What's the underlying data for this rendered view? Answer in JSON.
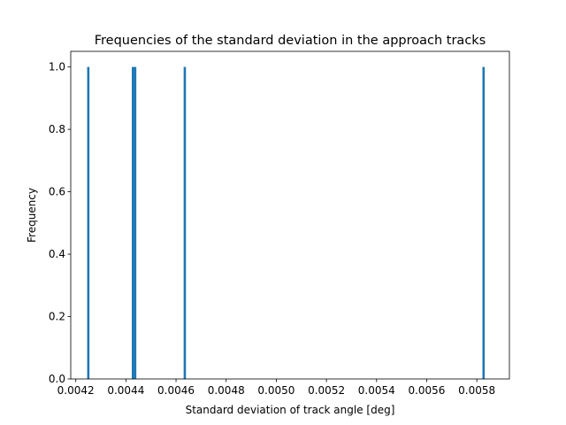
{
  "chart_data": {
    "type": "bar",
    "title": "Frequencies of the standard deviation in the approach tracks",
    "xlabel": "Standard deviation of track angle [deg]",
    "ylabel": "Frequency",
    "xlim": [
      0.00418,
      0.00593
    ],
    "ylim": [
      0,
      1.05
    ],
    "bar_color": "#1f77b4",
    "bin_width": 9.2e-06,
    "bars": [
      {
        "x": 0.00425,
        "count": 1
      },
      {
        "x": 0.004428,
        "count": 1
      },
      {
        "x": 0.004437,
        "count": 1
      },
      {
        "x": 0.004635,
        "count": 1
      },
      {
        "x": 0.005827,
        "count": 1
      }
    ],
    "xticks": [
      {
        "value": 0.0042,
        "label": "0.0042"
      },
      {
        "value": 0.0044,
        "label": "0.0044"
      },
      {
        "value": 0.0046,
        "label": "0.0046"
      },
      {
        "value": 0.0048,
        "label": "0.0048"
      },
      {
        "value": 0.005,
        "label": "0.0050"
      },
      {
        "value": 0.0052,
        "label": "0.0052"
      },
      {
        "value": 0.0054,
        "label": "0.0054"
      },
      {
        "value": 0.0056,
        "label": "0.0056"
      },
      {
        "value": 0.0058,
        "label": "0.0058"
      }
    ],
    "yticks": [
      {
        "value": 0.0,
        "label": "0.0"
      },
      {
        "value": 0.2,
        "label": "0.2"
      },
      {
        "value": 0.4,
        "label": "0.4"
      },
      {
        "value": 0.6,
        "label": "0.6"
      },
      {
        "value": 0.8,
        "label": "0.8"
      },
      {
        "value": 1.0,
        "label": "1.0"
      }
    ],
    "grid": false,
    "legend": "none"
  }
}
